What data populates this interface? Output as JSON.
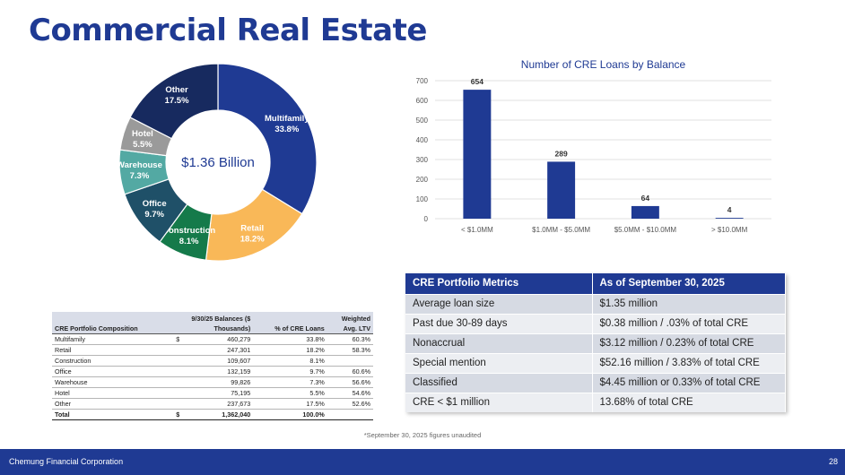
{
  "title": "Commercial Real Estate",
  "chart_data": [
    {
      "type": "pie",
      "center_label": "$1.36 Billion",
      "slices": [
        {
          "label": "Multifamily",
          "pct_label": "33.8%",
          "value": 33.8,
          "color": "#1f3a93",
          "text_color": "#ffffff"
        },
        {
          "label": "Retail",
          "pct_label": "18.2%",
          "value": 18.2,
          "color": "#f9b858",
          "text_color": "#ffffff"
        },
        {
          "label": "Construction",
          "pct_label": "8.1%",
          "value": 8.1,
          "color": "#157a4a",
          "text_color": "#ffffff"
        },
        {
          "label": "Office",
          "pct_label": "9.7%",
          "value": 9.7,
          "color": "#1f5068",
          "text_color": "#ffffff"
        },
        {
          "label": "Warehouse",
          "pct_label": "7.3%",
          "value": 7.3,
          "color": "#53a9a3",
          "text_color": "#ffffff"
        },
        {
          "label": "Hotel",
          "pct_label": "5.5%",
          "value": 5.5,
          "color": "#9a9a9a",
          "text_color": "#ffffff"
        },
        {
          "label": "Other",
          "pct_label": "17.5%",
          "value": 17.5,
          "color": "#172a5f",
          "text_color": "#ffffff"
        }
      ]
    },
    {
      "type": "bar",
      "title": "Number of CRE Loans by Balance",
      "categories": [
        "< $1.0MM",
        "$1.0MM - $5.0MM",
        "$5.0MM - $10.0MM",
        "> $10.0MM"
      ],
      "values": [
        654,
        289,
        64,
        4
      ],
      "ylim": [
        0,
        700
      ],
      "yticks": [
        0,
        100,
        200,
        300,
        400,
        500,
        600,
        700
      ],
      "grid": true,
      "bar_color": "#1f3a93"
    }
  ],
  "composition": {
    "header": {
      "col1": "CRE Portfolio Composition",
      "col2_line1": "9/30/25 Balances ($",
      "col2_line2": "Thousands)",
      "col3": "% of CRE Loans",
      "col4_line1": "Weighted",
      "col4_line2": "Avg. LTV"
    },
    "rows": [
      {
        "name": "Multifamily",
        "dollar": "$",
        "balance": "460,279",
        "pct": "33.8%",
        "ltv": "60.3%"
      },
      {
        "name": "Retail",
        "dollar": "",
        "balance": "247,301",
        "pct": "18.2%",
        "ltv": "58.3%"
      },
      {
        "name": "Construction",
        "dollar": "",
        "balance": "109,607",
        "pct": "8.1%",
        "ltv": ""
      },
      {
        "name": "Office",
        "dollar": "",
        "balance": "132,159",
        "pct": "9.7%",
        "ltv": "60.6%"
      },
      {
        "name": "Warehouse",
        "dollar": "",
        "balance": "99,826",
        "pct": "7.3%",
        "ltv": "56.6%"
      },
      {
        "name": "Hotel",
        "dollar": "",
        "balance": "75,195",
        "pct": "5.5%",
        "ltv": "54.6%"
      },
      {
        "name": "Other",
        "dollar": "",
        "balance": "237,673",
        "pct": "17.5%",
        "ltv": "52.6%"
      }
    ],
    "total": {
      "name": "Total",
      "dollar": "$",
      "balance": "1,362,040",
      "pct": "100.0%",
      "ltv": ""
    }
  },
  "metrics": {
    "header": {
      "col1": "CRE Portfolio Metrics",
      "col2": "As of September 30, 2025"
    },
    "rows": [
      {
        "label": "Average loan size",
        "value": "$1.35 million"
      },
      {
        "label": "Past due 30-89 days",
        "value": "$0.38 million / .03% of total CRE"
      },
      {
        "label": "Nonaccrual",
        "value": "$3.12 million / 0.23% of total CRE"
      },
      {
        "label": "Special mention",
        "value": "$52.16 million / 3.83% of total CRE"
      },
      {
        "label": "Classified",
        "value": "$4.45 million or 0.33% of total CRE"
      },
      {
        "label": "CRE < $1 million",
        "value": "13.68% of total CRE"
      }
    ]
  },
  "footnote": "*September 30, 2025 figures unaudited",
  "footer": {
    "company": "Chemung Financial Corporation",
    "page": "28"
  },
  "colors": {
    "brand_blue": "#1f3a93",
    "header_fill": "#d9dde8"
  }
}
